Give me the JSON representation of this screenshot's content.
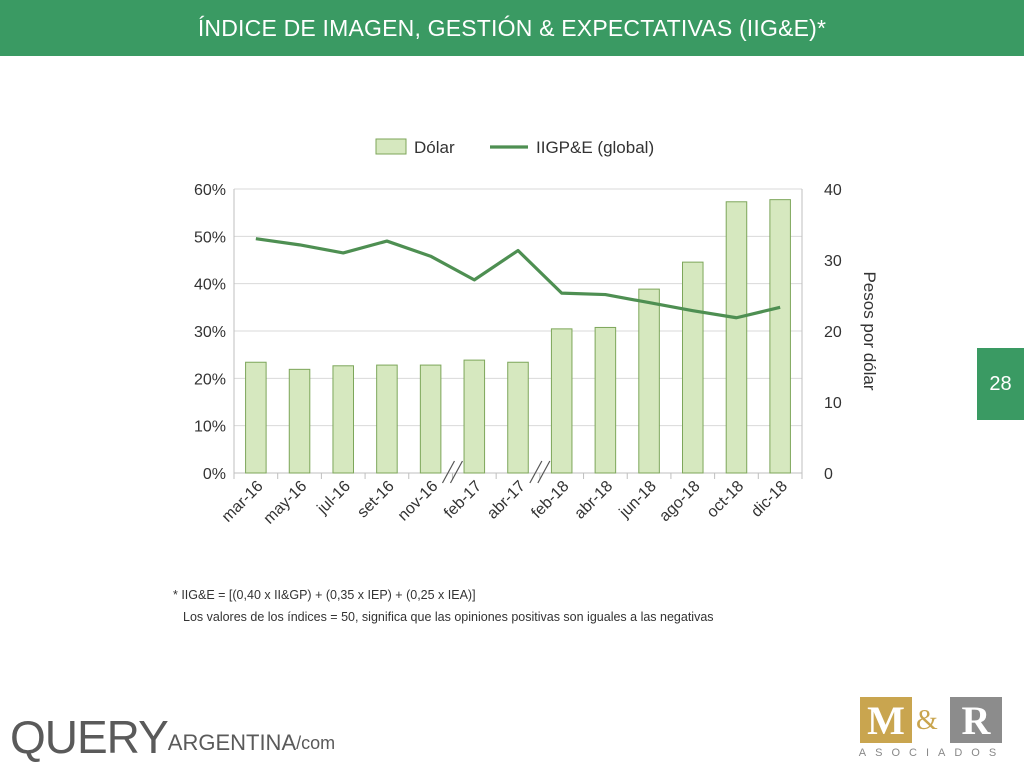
{
  "header": {
    "title": "ÍNDICE DE IMAGEN, GESTIÓN & EXPECTATIVAS (IIG&E)*"
  },
  "page_number": "28",
  "footnote": {
    "formula": "* IIG&E = [(0,40 x II&GP) + (0,35 x IEP) + (0,25 x IEA)]",
    "note": "Los valores de los índices = 50, significa que las opiniones positivas son iguales a las negativas"
  },
  "logos": {
    "query": {
      "q": "QUERY",
      "argentina": "ARGENTINA",
      "com": "/com"
    },
    "mr": {
      "m": "M",
      "amp": "&",
      "r": "R",
      "sub": "ASOCIADOS"
    }
  },
  "colors": {
    "accent": "#3a9a63",
    "bar_fill": "#d6e8bf",
    "bar_stroke": "#7da65a",
    "line": "#4e8f52"
  },
  "chart_data": {
    "type": "bar",
    "title": "",
    "categories": [
      "mar-16",
      "may-16",
      "jul-16",
      "set-16",
      "nov-16",
      "feb-17",
      "abr-17",
      "feb-18",
      "abr-18",
      "jun-18",
      "ago-18",
      "oct-18",
      "dic-18"
    ],
    "series": [
      {
        "name": "Dólar",
        "type": "bar",
        "axis": "right",
        "values": [
          15.6,
          14.6,
          15.1,
          15.2,
          15.2,
          15.9,
          15.6,
          20.3,
          20.5,
          25.9,
          29.7,
          38.2,
          38.5
        ]
      },
      {
        "name": "IIGP&E (global)",
        "type": "line",
        "axis": "left",
        "values": [
          49.5,
          48.2,
          46.5,
          49.0,
          45.8,
          40.8,
          47.0,
          38.0,
          37.7,
          36.0,
          34.3,
          32.8,
          35.0
        ]
      }
    ],
    "y_left": {
      "ticks": [
        "0%",
        "10%",
        "20%",
        "30%",
        "40%",
        "50%",
        "60%"
      ],
      "ylim": [
        0,
        60
      ],
      "label": ""
    },
    "y_right": {
      "ticks": [
        "0",
        "10",
        "20",
        "30",
        "40"
      ],
      "ylim": [
        0,
        40
      ],
      "label": "Pesos por dólar"
    },
    "axis_breaks_after": [
      "nov-16",
      "abr-17"
    ],
    "legend": "top",
    "grid": true
  }
}
